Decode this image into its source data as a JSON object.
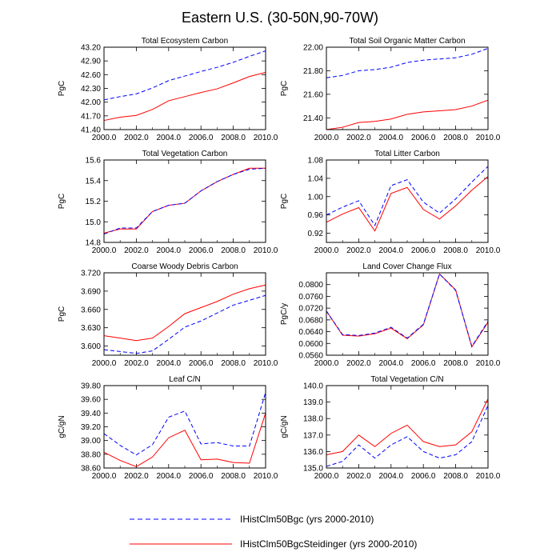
{
  "figure": {
    "title": "Eastern U.S. (30-50N,90-70W)",
    "background": "#ffffff"
  },
  "legend": {
    "placement": "bottom-center",
    "entries": [
      {
        "label": "IHistClm50Bgc (yrs 2000-2010)",
        "color": "#0000ff",
        "style": "dashed"
      },
      {
        "label": "IHistClm50BgcSteidinger (yrs 2000-2010)",
        "color": "#ff0000",
        "style": "solid"
      }
    ]
  },
  "chart_data": [
    {
      "type": "line",
      "title": "Total Ecosystem Carbon",
      "xlabel": "",
      "ylabel": "PgC",
      "xlim": [
        2000,
        2010
      ],
      "ylim": [
        41.4,
        43.2
      ],
      "xticks": [
        "2000.0",
        "2002.0",
        "2004.0",
        "2006.0",
        "2008.0",
        "2010.0"
      ],
      "yticks": [
        "41.40",
        "41.70",
        "42.00",
        "42.30",
        "42.60",
        "42.90",
        "43.20"
      ],
      "x": [
        2000,
        2001,
        2002,
        2003,
        2004,
        2005,
        2006,
        2007,
        2008,
        2009,
        2010
      ],
      "series": [
        {
          "name": "IHistClm50Bgc (yrs 2000-2010)",
          "color": "#0000ff",
          "style": "dashed",
          "values": [
            42.05,
            42.12,
            42.18,
            42.31,
            42.47,
            42.57,
            42.67,
            42.76,
            42.87,
            43.0,
            43.12
          ]
        },
        {
          "name": "IHistClm50BgcSteidinger (yrs 2000-2010)",
          "color": "#ff0000",
          "style": "solid",
          "values": [
            41.6,
            41.67,
            41.71,
            41.84,
            42.03,
            42.12,
            42.21,
            42.29,
            42.42,
            42.56,
            42.65
          ]
        }
      ]
    },
    {
      "type": "line",
      "title": "Total Soil Organic Matter Carbon",
      "xlabel": "",
      "ylabel": "PgC",
      "xlim": [
        2000,
        2010
      ],
      "ylim": [
        21.3,
        22.0
      ],
      "xticks": [
        "2000.0",
        "2002.0",
        "2004.0",
        "2006.0",
        "2008.0",
        "2010.0"
      ],
      "yticks": [
        "21.40",
        "21.60",
        "21.80",
        "22.00"
      ],
      "x": [
        2000,
        2001,
        2002,
        2003,
        2004,
        2005,
        2006,
        2007,
        2008,
        2009,
        2010
      ],
      "series": [
        {
          "name": "IHistClm50Bgc (yrs 2000-2010)",
          "color": "#0000ff",
          "style": "dashed",
          "values": [
            21.74,
            21.76,
            21.8,
            21.81,
            21.83,
            21.87,
            21.89,
            21.9,
            21.91,
            21.94,
            21.99
          ]
        },
        {
          "name": "IHistClm50BgcSteidinger (yrs 2000-2010)",
          "color": "#ff0000",
          "style": "solid",
          "values": [
            21.3,
            21.32,
            21.36,
            21.37,
            21.39,
            21.43,
            21.45,
            21.46,
            21.47,
            21.5,
            21.55
          ]
        }
      ]
    },
    {
      "type": "line",
      "title": "Total Vegetation Carbon",
      "xlabel": "",
      "ylabel": "PgC",
      "xlim": [
        2000,
        2010
      ],
      "ylim": [
        14.8,
        15.6
      ],
      "xticks": [
        "2000.0",
        "2002.0",
        "2004.0",
        "2006.0",
        "2008.0",
        "2010.0"
      ],
      "yticks": [
        "14.8",
        "15.0",
        "15.2",
        "15.4",
        "15.6"
      ],
      "x": [
        2000,
        2001,
        2002,
        2003,
        2004,
        2005,
        2006,
        2007,
        2008,
        2009,
        2010
      ],
      "series": [
        {
          "name": "IHistClm50Bgc (yrs 2000-2010)",
          "color": "#0000ff",
          "style": "dashed",
          "values": [
            14.88,
            14.94,
            14.94,
            15.1,
            15.16,
            15.18,
            15.3,
            15.39,
            15.46,
            15.51,
            15.52
          ]
        },
        {
          "name": "IHistClm50BgcSteidinger (yrs 2000-2010)",
          "color": "#ff0000",
          "style": "solid",
          "values": [
            14.89,
            14.93,
            14.93,
            15.1,
            15.16,
            15.18,
            15.3,
            15.39,
            15.46,
            15.52,
            15.52
          ]
        }
      ]
    },
    {
      "type": "line",
      "title": "Total Litter Carbon",
      "xlabel": "",
      "ylabel": "PgC",
      "xlim": [
        2000,
        2010
      ],
      "ylim": [
        0.9,
        1.08
      ],
      "xticks": [
        "2000.0",
        "2002.0",
        "2004.0",
        "2006.0",
        "2008.0",
        "2010.0"
      ],
      "yticks": [
        "0.92",
        "0.96",
        "1.00",
        "1.04",
        "1.08"
      ],
      "x": [
        2000,
        2001,
        2002,
        2003,
        2004,
        2005,
        2006,
        2007,
        2008,
        2009,
        2010
      ],
      "series": [
        {
          "name": "IHistClm50Bgc (yrs 2000-2010)",
          "color": "#0000ff",
          "style": "dashed",
          "values": [
            0.96,
            0.977,
            0.991,
            0.937,
            1.024,
            1.037,
            0.988,
            0.964,
            0.995,
            1.032,
            1.066
          ]
        },
        {
          "name": "IHistClm50BgcSteidinger (yrs 2000-2010)",
          "color": "#ff0000",
          "style": "solid",
          "values": [
            0.944,
            0.962,
            0.976,
            0.925,
            1.007,
            1.02,
            0.972,
            0.951,
            0.98,
            1.014,
            1.044
          ]
        }
      ]
    },
    {
      "type": "line",
      "title": "Coarse Woody Debris Carbon",
      "xlabel": "",
      "ylabel": "PgC",
      "xlim": [
        2000,
        2010
      ],
      "ylim": [
        3.585,
        3.72
      ],
      "xticks": [
        "2000.0",
        "2002.0",
        "2004.0",
        "2006.0",
        "2008.0",
        "2010.0"
      ],
      "yticks": [
        "3.600",
        "3.630",
        "3.660",
        "3.690",
        "3.720"
      ],
      "x": [
        2000,
        2001,
        2002,
        2003,
        2004,
        2005,
        2006,
        2007,
        2008,
        2009,
        2010
      ],
      "series": [
        {
          "name": "IHistClm50Bgc (yrs 2000-2010)",
          "color": "#0000ff",
          "style": "dashed",
          "values": [
            3.594,
            3.591,
            3.588,
            3.592,
            3.611,
            3.631,
            3.641,
            3.654,
            3.667,
            3.675,
            3.683
          ]
        },
        {
          "name": "IHistClm50BgcSteidinger (yrs 2000-2010)",
          "color": "#ff0000",
          "style": "solid",
          "values": [
            3.617,
            3.613,
            3.609,
            3.613,
            3.632,
            3.653,
            3.663,
            3.673,
            3.685,
            3.694,
            3.7
          ]
        }
      ]
    },
    {
      "type": "line",
      "title": "Land Cover Change Flux",
      "xlabel": "",
      "ylabel": "PgC/y",
      "xlim": [
        2000,
        2010
      ],
      "ylim": [
        0.056,
        0.084
      ],
      "xticks": [
        "2000.0",
        "2002.0",
        "2004.0",
        "2006.0",
        "2008.0",
        "2010.0"
      ],
      "yticks": [
        "0.0560",
        "0.0600",
        "0.0640",
        "0.0680",
        "0.0720",
        "0.0760",
        "0.0800"
      ],
      "x": [
        2000,
        2001,
        2002,
        2003,
        2004,
        2005,
        2006,
        2007,
        2008,
        2009,
        2010
      ],
      "series": [
        {
          "name": "IHistClm50Bgc (yrs 2000-2010)",
          "color": "#0000ff",
          "style": "dashed",
          "values": [
            0.071,
            0.063,
            0.0627,
            0.0635,
            0.0655,
            0.0618,
            0.0665,
            0.0836,
            0.078,
            0.059,
            0.0675
          ]
        },
        {
          "name": "IHistClm50BgcSteidinger (yrs 2000-2010)",
          "color": "#ff0000",
          "style": "solid",
          "values": [
            0.071,
            0.0628,
            0.0625,
            0.0633,
            0.0652,
            0.0616,
            0.0663,
            0.0836,
            0.0782,
            0.0588,
            0.0672
          ]
        }
      ]
    },
    {
      "type": "line",
      "title": "Leaf C/N",
      "xlabel": "",
      "ylabel": "gC/gN",
      "xlim": [
        2000,
        2010
      ],
      "ylim": [
        38.6,
        39.8
      ],
      "xticks": [
        "2000.0",
        "2002.0",
        "2004.0",
        "2006.0",
        "2008.0",
        "2010.0"
      ],
      "yticks": [
        "38.60",
        "38.80",
        "39.00",
        "39.20",
        "39.40",
        "39.60",
        "39.80"
      ],
      "x": [
        2000,
        2001,
        2002,
        2003,
        2004,
        2005,
        2006,
        2007,
        2008,
        2009,
        2010
      ],
      "series": [
        {
          "name": "IHistClm50Bgc (yrs 2000-2010)",
          "color": "#0000ff",
          "style": "dashed",
          "values": [
            39.1,
            38.93,
            38.79,
            38.94,
            39.34,
            39.43,
            38.95,
            38.97,
            38.92,
            38.92,
            39.7
          ]
        },
        {
          "name": "IHistClm50BgcSteidinger (yrs 2000-2010)",
          "color": "#ff0000",
          "style": "solid",
          "values": [
            38.83,
            38.71,
            38.62,
            38.76,
            39.04,
            39.15,
            38.72,
            38.73,
            38.68,
            38.67,
            39.4
          ]
        }
      ]
    },
    {
      "type": "line",
      "title": "Total Vegetation C/N",
      "xlabel": "",
      "ylabel": "gC/gN",
      "xlim": [
        2000,
        2010
      ],
      "ylim": [
        135.0,
        140.0
      ],
      "xticks": [
        "2000.0",
        "2002.0",
        "2004.0",
        "2006.0",
        "2008.0",
        "2010.0"
      ],
      "yticks": [
        "135.0",
        "136.0",
        "137.0",
        "138.0",
        "139.0",
        "140.0"
      ],
      "x": [
        2000,
        2001,
        2002,
        2003,
        2004,
        2005,
        2006,
        2007,
        2008,
        2009,
        2010
      ],
      "series": [
        {
          "name": "IHistClm50Bgc (yrs 2000-2010)",
          "color": "#0000ff",
          "style": "dashed",
          "values": [
            135.1,
            135.4,
            136.4,
            135.6,
            136.4,
            136.9,
            136.0,
            135.6,
            135.8,
            136.6,
            138.8
          ]
        },
        {
          "name": "IHistClm50BgcSteidinger (yrs 2000-2010)",
          "color": "#ff0000",
          "style": "solid",
          "values": [
            135.8,
            136.0,
            137.0,
            136.3,
            137.1,
            137.6,
            136.6,
            136.3,
            136.4,
            137.2,
            139.2
          ]
        }
      ]
    }
  ]
}
